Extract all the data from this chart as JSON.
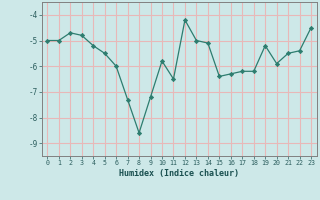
{
  "x": [
    0,
    1,
    2,
    3,
    4,
    5,
    6,
    7,
    8,
    9,
    10,
    11,
    12,
    13,
    14,
    15,
    16,
    17,
    18,
    19,
    20,
    21,
    22,
    23
  ],
  "y": [
    -5.0,
    -5.0,
    -4.7,
    -4.8,
    -5.2,
    -5.5,
    -6.0,
    -7.3,
    -8.6,
    -7.2,
    -5.8,
    -6.5,
    -4.2,
    -5.0,
    -5.1,
    -6.4,
    -6.3,
    -6.2,
    -6.2,
    -5.2,
    -5.9,
    -5.5,
    -5.4,
    -4.5
  ],
  "xlabel": "Humidex (Indice chaleur)",
  "xlim": [
    -0.5,
    23.5
  ],
  "ylim": [
    -9.5,
    -3.5
  ],
  "yticks": [
    -9,
    -8,
    -7,
    -6,
    -5,
    -4
  ],
  "xticks": [
    0,
    1,
    2,
    3,
    4,
    5,
    6,
    7,
    8,
    9,
    10,
    11,
    12,
    13,
    14,
    15,
    16,
    17,
    18,
    19,
    20,
    21,
    22,
    23
  ],
  "line_color": "#2d7d6f",
  "bg_color": "#cde8e8",
  "grid_color": "#e8b8b8",
  "tick_color": "#2d5f5f",
  "xlabel_color": "#1a5050"
}
